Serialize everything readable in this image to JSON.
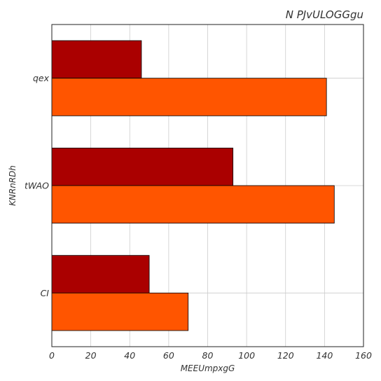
{
  "chart_data": {
    "type": "bar",
    "orientation": "horizontal",
    "title": "N PJvULOGGgu",
    "xlabel": "MEEUmpxgG",
    "ylabel": "KNRnRDh",
    "categories": [
      "CI",
      "tWAO",
      "qex"
    ],
    "series": [
      {
        "color": "#aa0000",
        "values": [
          50,
          93,
          46
        ]
      },
      {
        "color": "#ff5500",
        "values": [
          70,
          145,
          141
        ]
      }
    ],
    "xlim": [
      0,
      160
    ],
    "xticks": [
      "0",
      "20",
      "40",
      "60",
      "80",
      "100",
      "120",
      "140",
      "160"
    ],
    "grid": true
  }
}
